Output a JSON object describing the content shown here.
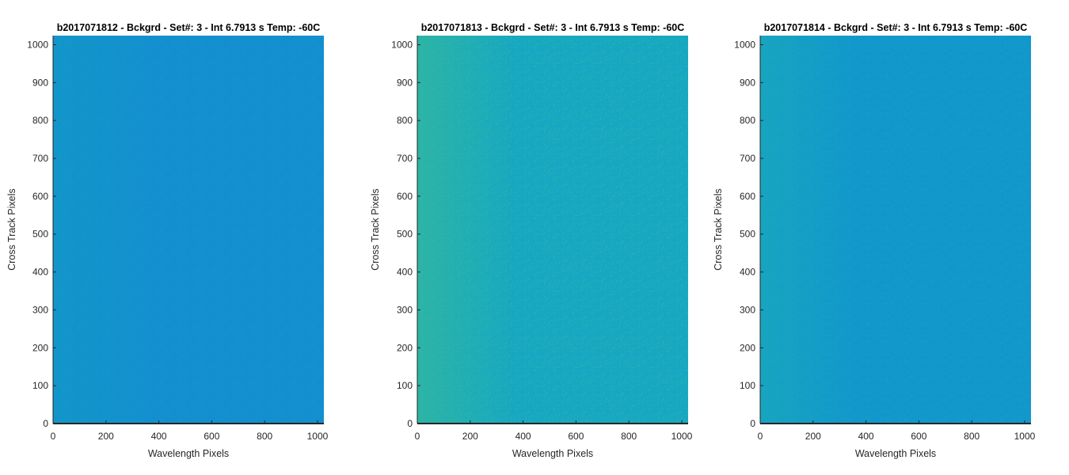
{
  "chart_data": [
    {
      "type": "heatmap",
      "title": "b2017071812 - Bckgrd - Set#: 3 - Int 6.7913 s Temp: -60C",
      "xlabel": "Wavelength Pixels",
      "ylabel": "Cross Track Pixels",
      "xlim": [
        0,
        1024
      ],
      "ylim": [
        0,
        1024
      ],
      "xticks": [
        0,
        200,
        400,
        600,
        800,
        1000
      ],
      "yticks": [
        0,
        100,
        200,
        300,
        400,
        500,
        600,
        700,
        800,
        900,
        1000
      ],
      "grid": false,
      "base_color": "#138fcf",
      "edge_color": "#1296c9",
      "noise_color": "#1aa2c4",
      "noise_level": 0.35
    },
    {
      "type": "heatmap",
      "title": "b2017071813 - Bckgrd - Set#: 3 - Int 6.7913 s Temp: -60C",
      "xlabel": "Wavelength Pixels",
      "ylabel": "Cross Track Pixels",
      "xlim": [
        0,
        1024
      ],
      "ylim": [
        0,
        1024
      ],
      "xticks": [
        0,
        200,
        400,
        600,
        800,
        1000
      ],
      "yticks": [
        0,
        100,
        200,
        300,
        400,
        500,
        600,
        700,
        800,
        900,
        1000
      ],
      "grid": false,
      "base_color": "#16a8c2",
      "edge_color": "#2bb4a6",
      "noise_color": "#48bc8e",
      "noise_level": 0.7
    },
    {
      "type": "heatmap",
      "title": "b2017071814 - Bckgrd - Set#: 3 - Int 6.7913 s Temp: -60C",
      "xlabel": "Wavelength Pixels",
      "ylabel": "Cross Track Pixels",
      "xlim": [
        0,
        1024
      ],
      "ylim": [
        0,
        1024
      ],
      "xticks": [
        0,
        200,
        400,
        600,
        800,
        1000
      ],
      "yticks": [
        0,
        100,
        200,
        300,
        400,
        500,
        600,
        700,
        800,
        900,
        1000
      ],
      "grid": false,
      "base_color": "#1197cc",
      "edge_color": "#17a4c0",
      "noise_color": "#26aeb4",
      "noise_level": 0.5
    }
  ]
}
